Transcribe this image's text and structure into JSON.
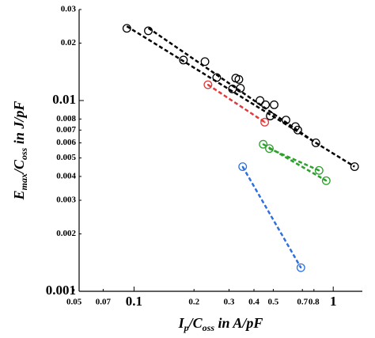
{
  "chart_data": {
    "type": "scatter",
    "xlabel": [
      "I",
      "p",
      "/C",
      "oss",
      " in A/pF"
    ],
    "ylabel": [
      "E",
      "max",
      "/C",
      "oss",
      " in J/pF"
    ],
    "xscale": "log",
    "yscale": "log",
    "xlim": [
      0.053,
      1.4
    ],
    "ylim": [
      0.001,
      0.03
    ],
    "xticks": [
      0.05,
      0.07,
      0.1,
      0.2,
      0.3,
      0.4,
      0.5,
      0.7,
      0.8,
      1
    ],
    "yticks": [
      0.001,
      0.002,
      0.003,
      0.004,
      0.005,
      0.006,
      0.007,
      0.008,
      0.01,
      0.02,
      0.03
    ],
    "series": [
      {
        "color": "#000000",
        "x": [
          0.092,
          0.118,
          0.177,
          0.227,
          0.26,
          0.312,
          0.324,
          0.336,
          0.342,
          0.429,
          0.457,
          0.505,
          0.483,
          0.579,
          0.646,
          0.664,
          0.818,
          1.28
        ],
        "values": [
          0.0239,
          0.0232,
          0.0163,
          0.016,
          0.0132,
          0.0115,
          0.0131,
          0.0129,
          0.0116,
          0.01,
          0.0095,
          0.0095,
          0.0083,
          0.0079,
          0.0073,
          0.007,
          0.006,
          0.0045
        ]
      },
      {
        "color": "#e03a3a",
        "x": [
          0.235,
          0.453
        ],
        "values": [
          0.0121,
          0.0077
        ]
      },
      {
        "color": "#2ca02c",
        "x": [
          0.445,
          0.478,
          0.849,
          0.922
        ],
        "values": [
          0.0059,
          0.0056,
          0.0043,
          0.0038
        ]
      },
      {
        "color": "#2f6fe0",
        "x": [
          0.351,
          0.688
        ],
        "values": [
          0.0045,
          0.00133
        ]
      }
    ],
    "fit_lines": [
      {
        "color": "#000000",
        "x": [
          0.092,
          1.28
        ],
        "values": [
          0.0245,
          0.0045
        ]
      },
      {
        "color": "#000000",
        "x": [
          0.118,
          0.818
        ],
        "values": [
          0.024,
          0.006
        ]
      },
      {
        "color": "#e03a3a",
        "x": [
          0.235,
          0.453
        ],
        "values": [
          0.0121,
          0.0077
        ]
      },
      {
        "color": "#2ca02c",
        "x": [
          0.445,
          0.922
        ],
        "values": [
          0.0059,
          0.0038
        ]
      },
      {
        "color": "#2ca02c",
        "x": [
          0.478,
          0.849
        ],
        "values": [
          0.0056,
          0.0043
        ]
      },
      {
        "color": "#2f6fe0",
        "x": [
          0.351,
          0.688
        ],
        "values": [
          0.0045,
          0.00133
        ]
      }
    ]
  }
}
